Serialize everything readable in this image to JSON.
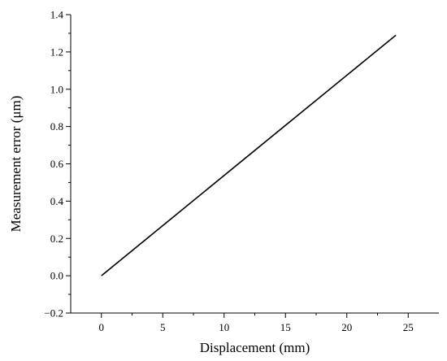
{
  "chart_data": {
    "type": "line",
    "title": "",
    "xlabel": "Displacement (mm)",
    "ylabel": "Measurement error (μm)",
    "xlim": [
      -2.5,
      27.5
    ],
    "ylim": [
      -0.2,
      1.4
    ],
    "xticks": [
      0,
      5,
      10,
      15,
      20,
      25
    ],
    "xtick_labels": [
      "0",
      "5",
      "10",
      "15",
      "20",
      "25"
    ],
    "yticks": [
      -0.2,
      0.0,
      0.2,
      0.4,
      0.6,
      0.8,
      1.0,
      1.2,
      1.4
    ],
    "ytick_labels": [
      "−0.2",
      "0.0",
      "0.2",
      "0.4",
      "0.6",
      "0.8",
      "1.0",
      "1.2",
      "1.4"
    ],
    "grid": false,
    "legend": "none",
    "series": [
      {
        "x": [
          0,
          24
        ],
        "y": [
          0.0,
          1.29
        ],
        "color": "#000000"
      }
    ]
  }
}
